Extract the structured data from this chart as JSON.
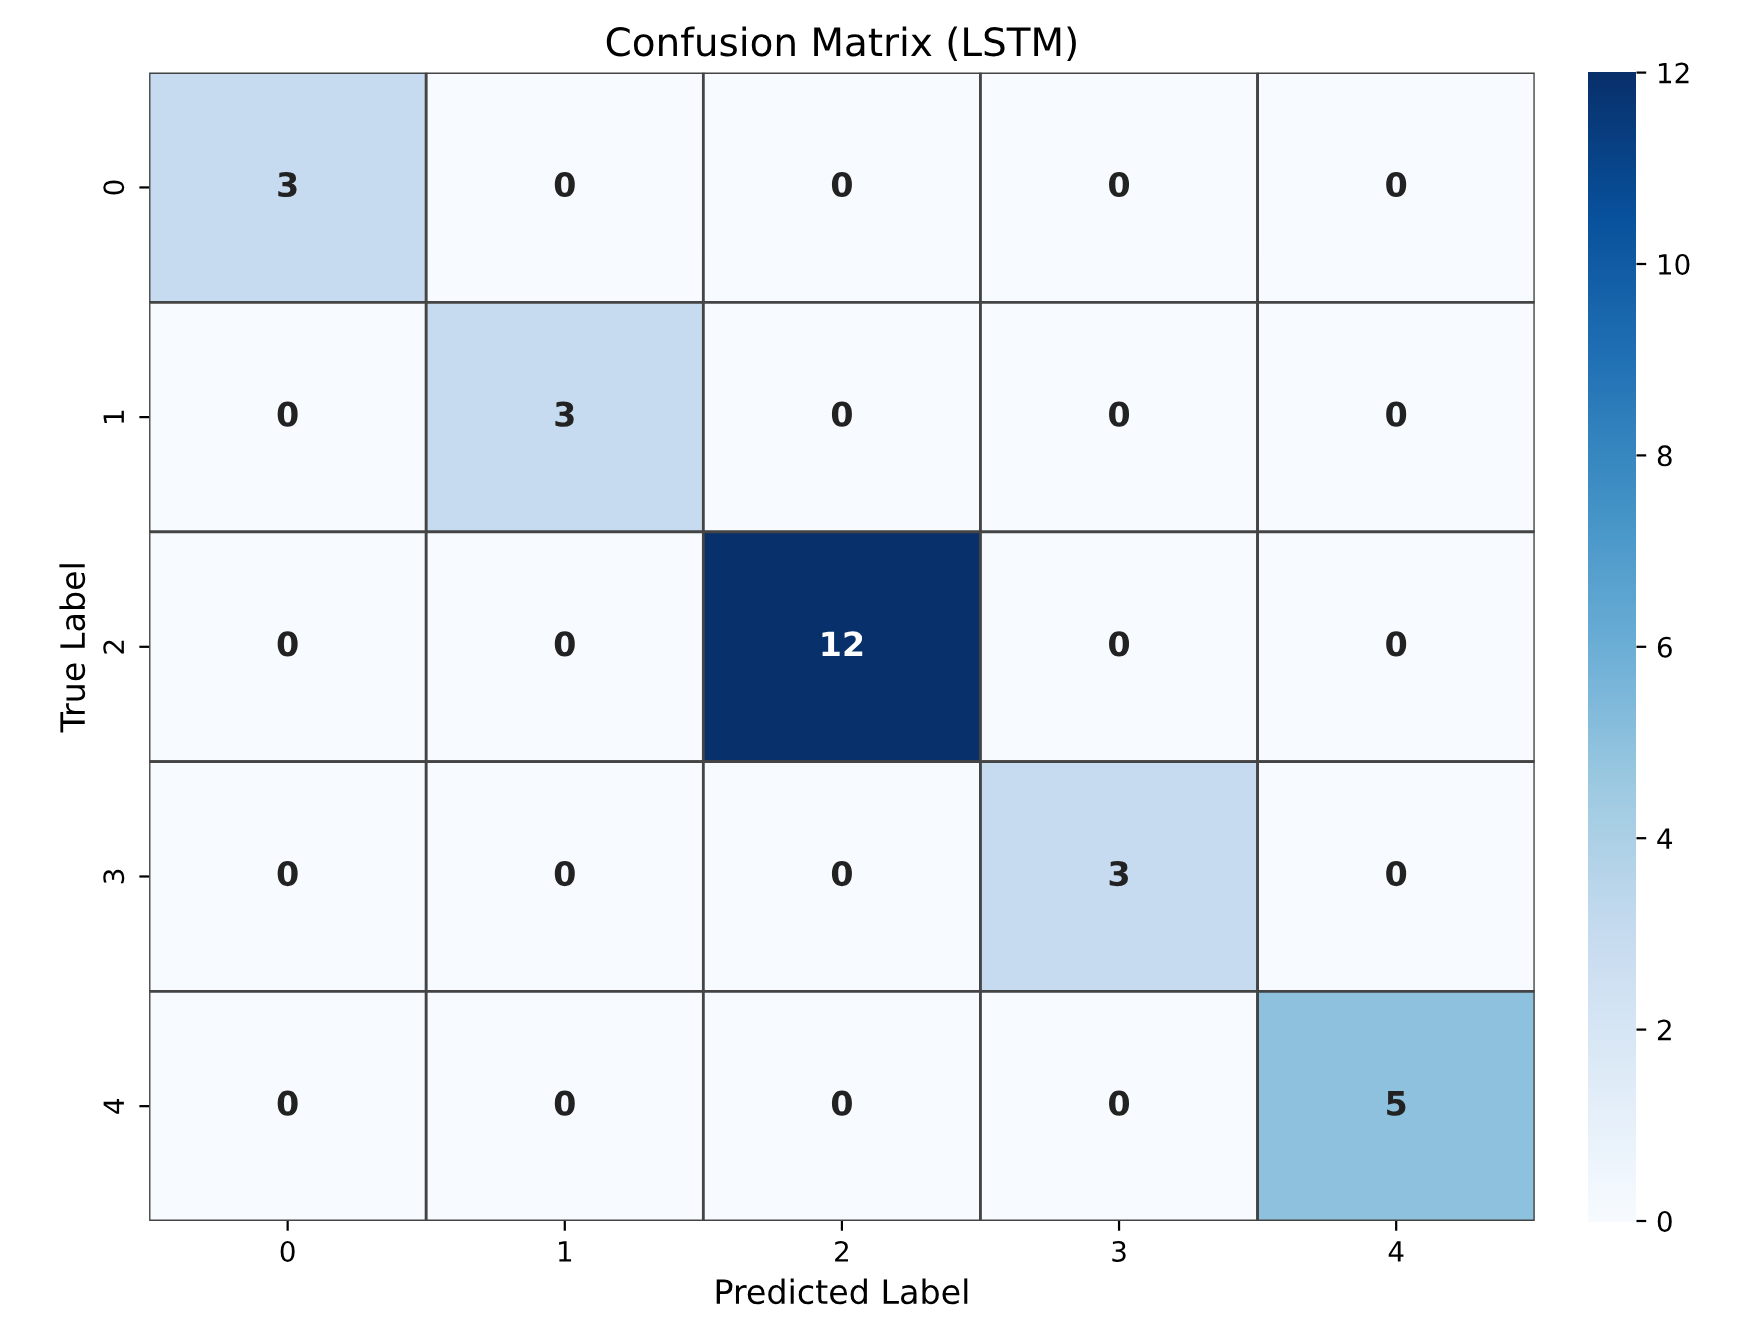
{
  "chart_data": {
    "type": "heatmap",
    "title": "Confusion Matrix (LSTM)",
    "xlabel": "Predicted Label",
    "ylabel": "True Label",
    "categories": [
      "0",
      "1",
      "2",
      "3",
      "4"
    ],
    "y_categories": [
      "0",
      "1",
      "2",
      "3",
      "4"
    ],
    "cells": [
      [
        3,
        0,
        0,
        0,
        0
      ],
      [
        0,
        3,
        0,
        0,
        0
      ],
      [
        0,
        0,
        12,
        0,
        0
      ],
      [
        0,
        0,
        0,
        3,
        0
      ],
      [
        0,
        0,
        0,
        0,
        5
      ]
    ],
    "clim": [
      0,
      12
    ],
    "cticks": [
      0,
      2,
      4,
      6,
      8,
      10,
      12
    ],
    "data_labels": true
  }
}
